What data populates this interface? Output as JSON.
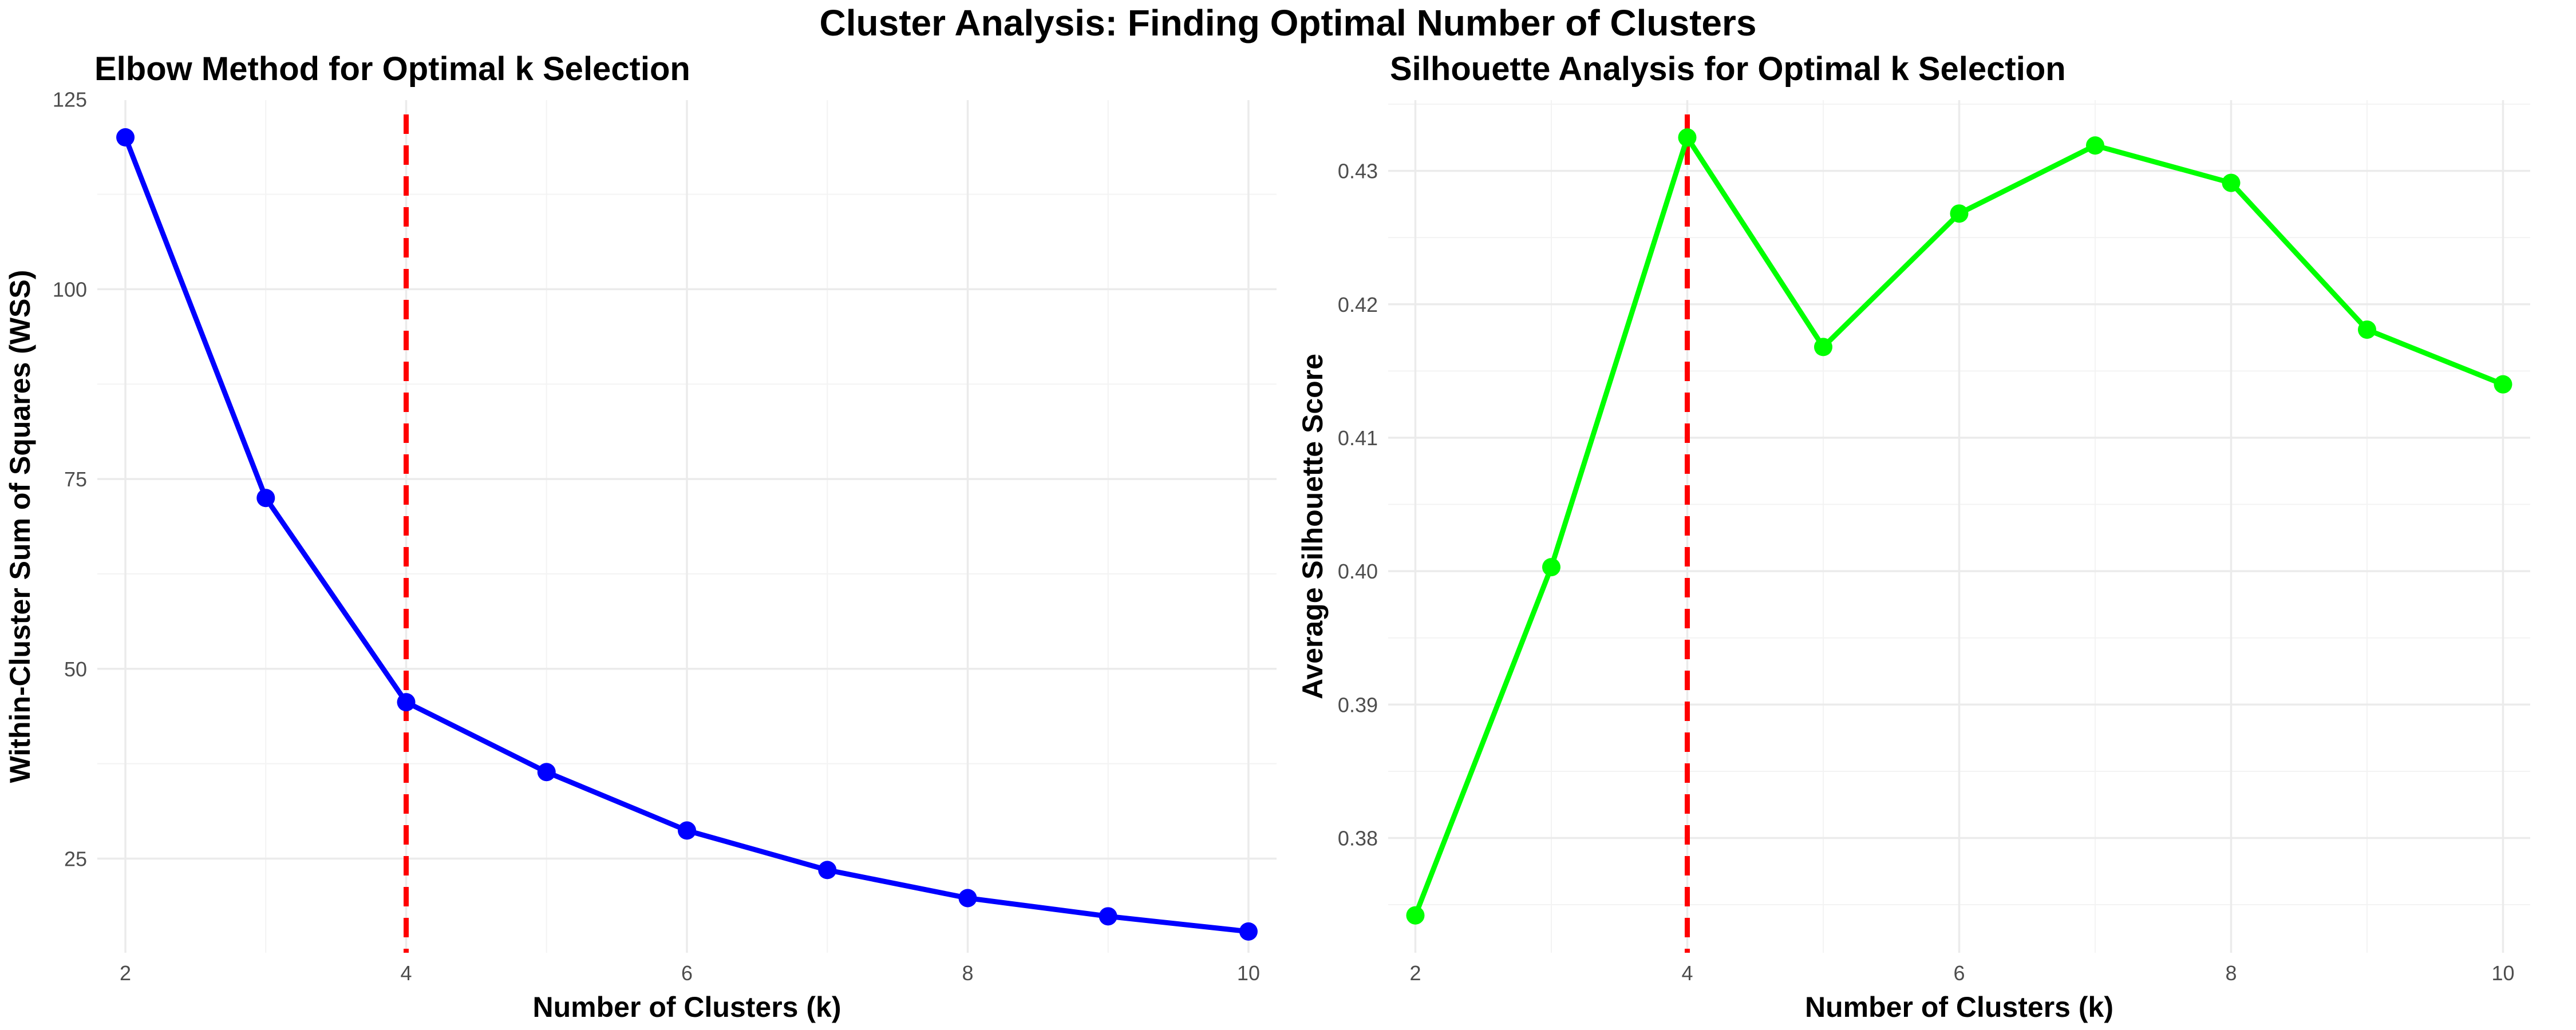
{
  "title": "Cluster Analysis: Finding Optimal Number of Clusters",
  "colors": {
    "elbow_line": "#0000ff",
    "silhouette_line": "#00ff00",
    "reference_line": "#ff0000",
    "grid": "#ebebeb",
    "tick_text": "#4d4d4d"
  },
  "chart_data": [
    {
      "type": "line",
      "title": "Elbow Method for Optimal k Selection",
      "xlabel": "Number of Clusters (k)",
      "ylabel": "Within-Cluster Sum of Squares (WSS)",
      "x": [
        2,
        3,
        4,
        5,
        6,
        7,
        8,
        9,
        10
      ],
      "series": [
        {
          "values": [
            120.0,
            72.5,
            45.6,
            36.4,
            28.7,
            23.5,
            19.8,
            17.4,
            15.4
          ]
        }
      ],
      "xlim": [
        1.8,
        10.2
      ],
      "ylim": [
        12.6,
        124.9
      ],
      "xticks": [
        2,
        4,
        6,
        8,
        10
      ],
      "yticks": [
        25,
        50,
        75,
        100,
        125
      ],
      "vline": {
        "x": 4,
        "style": "dashed",
        "color": "#ff0000"
      },
      "grid": true,
      "legend": "none",
      "markers": true
    },
    {
      "type": "line",
      "title": "Silhouette Analysis for Optimal k Selection",
      "xlabel": "Number of Clusters (k)",
      "ylabel": "Average Silhouette Score",
      "x": [
        2,
        3,
        4,
        5,
        6,
        7,
        8,
        9,
        10
      ],
      "series": [
        {
          "values": [
            0.3742,
            0.4003,
            0.4325,
            0.4168,
            0.4268,
            0.4319,
            0.4291,
            0.4181,
            0.414
          ]
        }
      ],
      "xlim": [
        1.8,
        10.2
      ],
      "ylim": [
        0.3714,
        0.4353
      ],
      "xticks": [
        2,
        4,
        6,
        8,
        10
      ],
      "yticks": [
        0.38,
        0.39,
        0.4,
        0.41,
        0.42,
        0.43
      ],
      "ytick_labels": [
        "0.38",
        "0.39",
        "0.40",
        "0.41",
        "0.42",
        "0.43"
      ],
      "vline": {
        "x": 4,
        "style": "dashed",
        "color": "#ff0000"
      },
      "grid": true,
      "legend": "none",
      "markers": true
    }
  ]
}
